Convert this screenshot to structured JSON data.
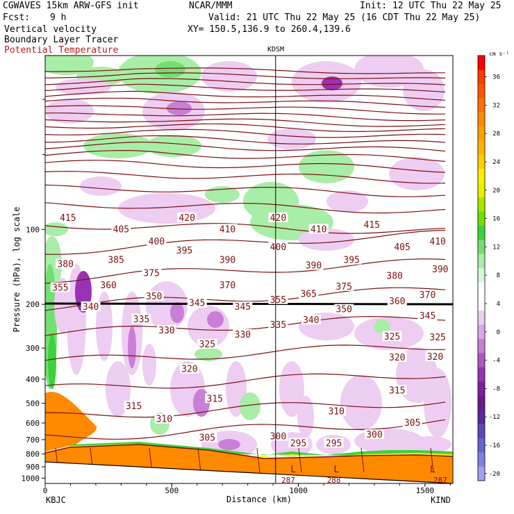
{
  "header": {
    "model": "CGWAVES 15km ARW-GFS init",
    "org": "NCAR/MMM",
    "init": "Init: 12 UTC Thu 22 May 25",
    "fcst_label": "Fcst:",
    "fcst_value": "9 h",
    "valid": "Valid: 21 UTC Thu 22 May 25 (16 CDT Thu 22 May 25)",
    "field1": "Vertical velocity",
    "field2": "Boundary Layer Tracer",
    "field3": "Potential Temperature",
    "xy": "XY= 150.5,136.9 to 260.4,139.6",
    "field3_color": "#b02020"
  },
  "chart_data": {
    "type": "heatmap",
    "title": "KDSM",
    "xlabel": "Distance (km)",
    "ylabel": "Pressure (hPa), log scale",
    "x_ticks": [
      "0",
      "500",
      "1000",
      "1500"
    ],
    "x_tick_values": [
      0,
      500,
      1000,
      1500
    ],
    "xlim": [
      0,
      1610
    ],
    "y_scale": "log",
    "y_ticks": [
      "100",
      "200",
      "300",
      "400",
      "500",
      "600",
      "700",
      "800",
      "900",
      "1000"
    ],
    "y_tick_values": [
      100,
      200,
      300,
      400,
      500,
      600,
      700,
      800,
      900,
      1000
    ],
    "ylim": [
      1050,
      20
    ],
    "left_station": "KBJC",
    "right_station": "KIND",
    "marker_station": "KDSM",
    "marker_x_km": 910,
    "colorbar": {
      "unit": "cm s⁻¹",
      "labels": [
        "36",
        "32",
        "28",
        "24",
        "20",
        "16",
        "12",
        "8",
        "4",
        "0",
        "-4",
        "-8",
        "-12",
        "-16",
        "-20"
      ],
      "colors": [
        "#ff0000",
        "#ff3b00",
        "#ff5500",
        "#ff7000",
        "#ff8a00",
        "#ffa000",
        "#ffb400",
        "#ffcf00",
        "#ffef00",
        "#e6f000",
        "#a8e600",
        "#6ee000",
        "#3cd23c",
        "#70e070",
        "#a8eea8",
        "#d6f6d6",
        "#ffffff",
        "#ffffff",
        "#eecdf2",
        "#dba6e6",
        "#c97ed8",
        "#b055c6",
        "#9a32b4",
        "#8020a0",
        "#6a1a8a",
        "#5a28a0",
        "#5a4ab8",
        "#6464d0",
        "#7f7fe6",
        "#a0a0f4"
      ]
    },
    "theta_labels": [
      {
        "value": "415",
        "x_km": 90,
        "p": 90
      },
      {
        "value": "405",
        "x_km": 300,
        "p": 100
      },
      {
        "value": "420",
        "x_km": 560,
        "p": 90
      },
      {
        "value": "410",
        "x_km": 720,
        "p": 100
      },
      {
        "value": "420",
        "x_km": 920,
        "p": 90
      },
      {
        "value": "410",
        "x_km": 1080,
        "p": 100
      },
      {
        "value": "415",
        "x_km": 1290,
        "p": 96
      },
      {
        "value": "410",
        "x_km": 1550,
        "p": 112
      },
      {
        "value": "400",
        "x_km": 440,
        "p": 112
      },
      {
        "value": "395",
        "x_km": 550,
        "p": 122
      },
      {
        "value": "400",
        "x_km": 920,
        "p": 118
      },
      {
        "value": "405",
        "x_km": 1410,
        "p": 118
      },
      {
        "value": "380",
        "x_km": 80,
        "p": 138
      },
      {
        "value": "385",
        "x_km": 280,
        "p": 133
      },
      {
        "value": "390",
        "x_km": 720,
        "p": 133
      },
      {
        "value": "390",
        "x_km": 1060,
        "p": 140
      },
      {
        "value": "395",
        "x_km": 1210,
        "p": 133
      },
      {
        "value": "390",
        "x_km": 1560,
        "p": 145
      },
      {
        "value": "375",
        "x_km": 420,
        "p": 150
      },
      {
        "value": "370",
        "x_km": 720,
        "p": 168
      },
      {
        "value": "380",
        "x_km": 1380,
        "p": 154
      },
      {
        "value": "355",
        "x_km": 60,
        "p": 172
      },
      {
        "value": "360",
        "x_km": 250,
        "p": 168
      },
      {
        "value": "350",
        "x_km": 430,
        "p": 186
      },
      {
        "value": "345",
        "x_km": 600,
        "p": 198
      },
      {
        "value": "345",
        "x_km": 780,
        "p": 205
      },
      {
        "value": "375",
        "x_km": 1180,
        "p": 170
      },
      {
        "value": "365",
        "x_km": 1040,
        "p": 182
      },
      {
        "value": "370",
        "x_km": 1510,
        "p": 184
      },
      {
        "value": "355",
        "x_km": 920,
        "p": 192
      },
      {
        "value": "360",
        "x_km": 1390,
        "p": 195
      },
      {
        "value": "350",
        "x_km": 1180,
        "p": 210
      },
      {
        "value": "345",
        "x_km": 1510,
        "p": 223
      },
      {
        "value": "340",
        "x_km": 180,
        "p": 205
      },
      {
        "value": "335",
        "x_km": 380,
        "p": 230
      },
      {
        "value": "340",
        "x_km": 1050,
        "p": 232
      },
      {
        "value": "335",
        "x_km": 920,
        "p": 242
      },
      {
        "value": "330",
        "x_km": 480,
        "p": 255
      },
      {
        "value": "330",
        "x_km": 780,
        "p": 265
      },
      {
        "value": "325",
        "x_km": 640,
        "p": 290
      },
      {
        "value": "325",
        "x_km": 1370,
        "p": 270
      },
      {
        "value": "325",
        "x_km": 1550,
        "p": 272
      },
      {
        "value": "320",
        "x_km": 1390,
        "p": 328
      },
      {
        "value": "320",
        "x_km": 1540,
        "p": 326
      },
      {
        "value": "320",
        "x_km": 570,
        "p": 365
      },
      {
        "value": "315",
        "x_km": 1390,
        "p": 445
      },
      {
        "value": "315",
        "x_km": 670,
        "p": 480
      },
      {
        "value": "315",
        "x_km": 350,
        "p": 515
      },
      {
        "value": "310",
        "x_km": 1150,
        "p": 540
      },
      {
        "value": "310",
        "x_km": 470,
        "p": 580
      },
      {
        "value": "305",
        "x_km": 1450,
        "p": 600
      },
      {
        "value": "305",
        "x_km": 640,
        "p": 690
      },
      {
        "value": "300",
        "x_km": 920,
        "p": 680
      },
      {
        "value": "300",
        "x_km": 1300,
        "p": 670
      },
      {
        "value": "295",
        "x_km": 1000,
        "p": 725
      },
      {
        "value": "295",
        "x_km": 1140,
        "p": 725
      }
    ],
    "bottom_labels": [
      {
        "value": "287",
        "x_km": 960
      },
      {
        "value": "288",
        "x_km": 1140
      },
      {
        "value": "287",
        "x_km": 1560
      }
    ],
    "low_markers": [
      "L",
      "L",
      "L"
    ],
    "low_x_km": [
      980,
      1150,
      1530
    ]
  }
}
